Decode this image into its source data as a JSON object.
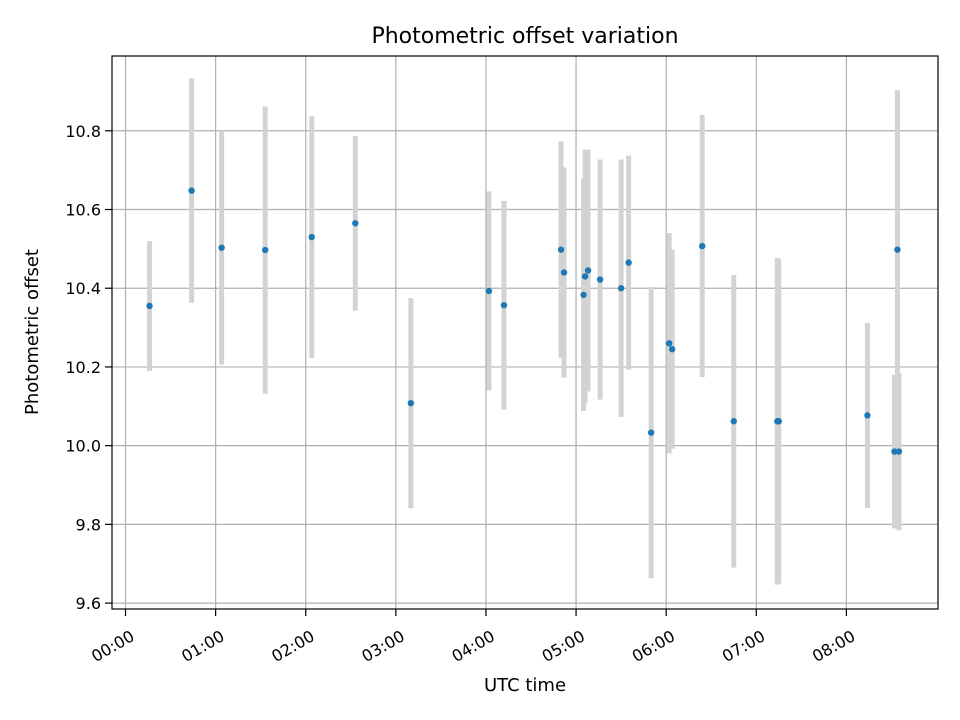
{
  "chart_data": {
    "type": "scatter",
    "title": "Photometric offset variation",
    "xlabel": "UTC time",
    "ylabel": "Photometric offset",
    "x_axis_type": "time",
    "xlim": [
      "23:51",
      "09:01"
    ],
    "ylim": [
      9.585,
      10.99
    ],
    "x_ticks": [
      "00:00",
      "01:00",
      "02:00",
      "03:00",
      "04:00",
      "05:00",
      "06:00",
      "07:00",
      "08:00"
    ],
    "y_ticks": [
      9.6,
      9.8,
      10.0,
      10.2,
      10.4,
      10.6,
      10.8
    ],
    "y_tick_labels": [
      "9.6",
      "9.8",
      "10.0",
      "10.2",
      "10.4",
      "10.6",
      "10.8"
    ],
    "x_tick_rotation_deg": 30,
    "grid": true,
    "legend": "none",
    "marker_color": "#1f77b4",
    "errorbar_color": "#d3d3d3",
    "points": [
      {
        "x": "00:16",
        "y": 10.355,
        "yerr": 0.165
      },
      {
        "x": "00:44",
        "y": 10.648,
        "yerr": 0.285
      },
      {
        "x": "01:04",
        "y": 10.503,
        "yerr": 0.297
      },
      {
        "x": "01:33",
        "y": 10.497,
        "yerr": 0.365
      },
      {
        "x": "02:04",
        "y": 10.53,
        "yerr": 0.307
      },
      {
        "x": "02:33",
        "y": 10.565,
        "yerr": 0.222
      },
      {
        "x": "03:10",
        "y": 10.108,
        "yerr": 0.267
      },
      {
        "x": "04:02",
        "y": 10.393,
        "yerr": 0.253
      },
      {
        "x": "04:12",
        "y": 10.357,
        "yerr": 0.265
      },
      {
        "x": "04:50",
        "y": 10.498,
        "yerr": 0.275
      },
      {
        "x": "04:52",
        "y": 10.44,
        "yerr": 0.267
      },
      {
        "x": "05:05",
        "y": 10.383,
        "yerr": 0.295
      },
      {
        "x": "05:06",
        "y": 10.43,
        "yerr": 0.322
      },
      {
        "x": "05:08",
        "y": 10.445,
        "yerr": 0.307
      },
      {
        "x": "05:16",
        "y": 10.422,
        "yerr": 0.305
      },
      {
        "x": "05:30",
        "y": 10.4,
        "yerr": 0.327
      },
      {
        "x": "05:35",
        "y": 10.465,
        "yerr": 0.272
      },
      {
        "x": "05:50",
        "y": 10.033,
        "yerr": 0.37
      },
      {
        "x": "06:02",
        "y": 10.26,
        "yerr": 0.28
      },
      {
        "x": "06:04",
        "y": 10.245,
        "yerr": 0.253
      },
      {
        "x": "06:24",
        "y": 10.507,
        "yerr": 0.333
      },
      {
        "x": "06:45",
        "y": 10.062,
        "yerr": 0.372
      },
      {
        "x": "07:14",
        "y": 10.062,
        "yerr": 0.415
      },
      {
        "x": "07:15",
        "y": 10.062,
        "yerr": 0.412
      },
      {
        "x": "08:14",
        "y": 10.077,
        "yerr": 0.235
      },
      {
        "x": "08:32",
        "y": 9.985,
        "yerr": 0.195
      },
      {
        "x": "08:34",
        "y": 10.498,
        "yerr": 0.405
      },
      {
        "x": "08:35",
        "y": 9.985,
        "yerr": 0.2
      }
    ]
  }
}
